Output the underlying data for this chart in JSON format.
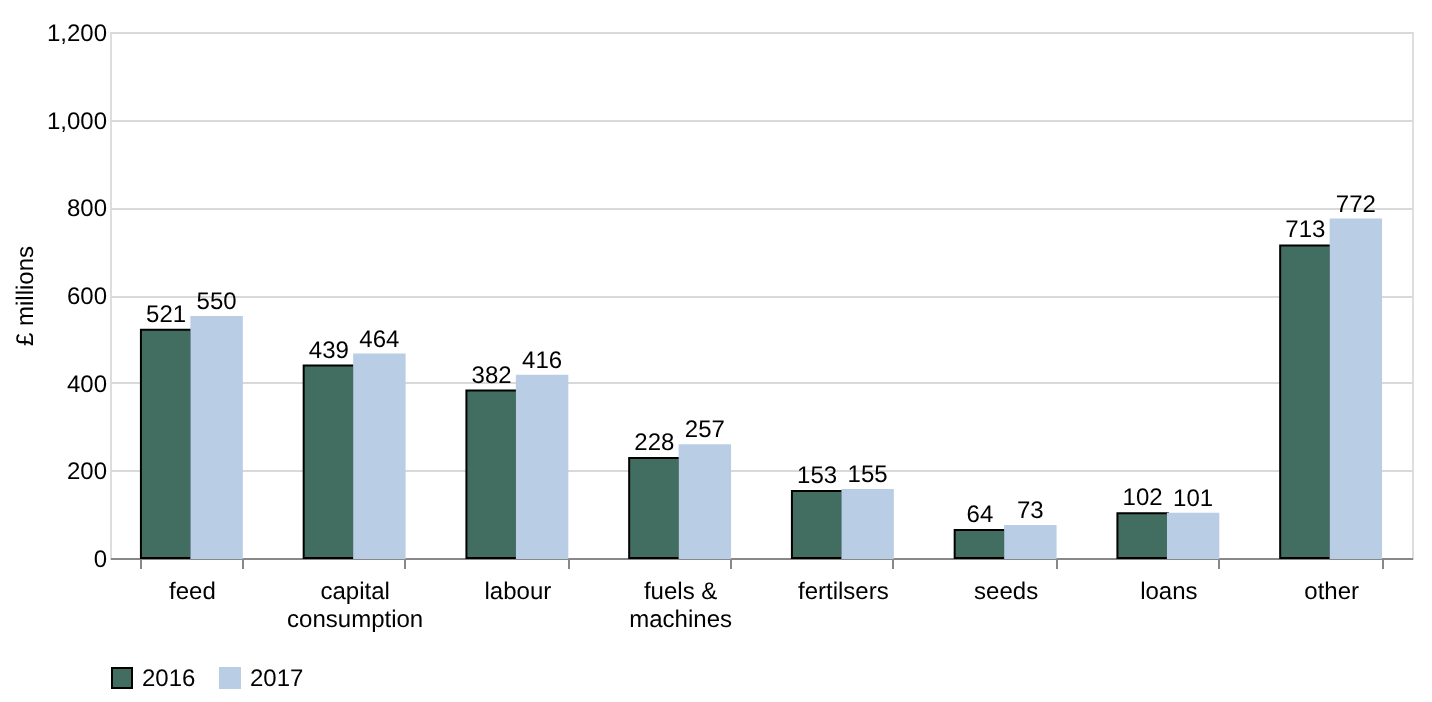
{
  "chart_data": {
    "type": "bar",
    "ylabel": "£ millions",
    "categories": [
      "feed",
      "capital consumption",
      "labour",
      "fuels & machines",
      "fertilsers",
      "seeds",
      "loans",
      "other"
    ],
    "series": [
      {
        "name": "2016",
        "color": "#426e62",
        "values": [
          521,
          439,
          382,
          228,
          153,
          64,
          102,
          713
        ]
      },
      {
        "name": "2017",
        "color": "#b9cde5",
        "values": [
          550,
          464,
          416,
          257,
          155,
          73,
          101,
          772
        ]
      }
    ],
    "ylim": [
      0,
      1200
    ],
    "yticks": [
      0,
      200,
      400,
      600,
      800,
      {
        "value": 1000,
        "label": "1,000"
      },
      {
        "value": 1200,
        "label": "1,200"
      }
    ],
    "grid": "y",
    "legend": "bottom",
    "data_labels": true
  }
}
